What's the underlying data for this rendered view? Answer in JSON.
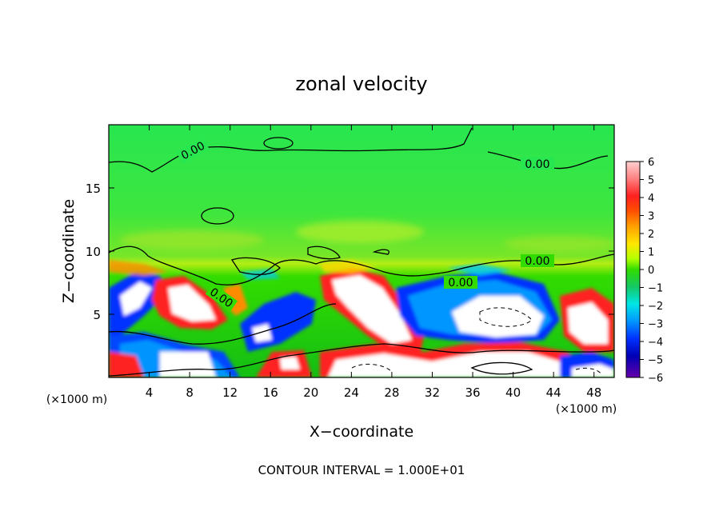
{
  "chart_data": {
    "type": "heatmap",
    "title": "zonal velocity",
    "xlabel": "X−coordinate",
    "ylabel": "Z−coordinate",
    "x_unit_left": "(×1000 m)",
    "x_unit_right": "(×1000 m)",
    "xlim": [
      0,
      50
    ],
    "ylim": [
      0,
      20
    ],
    "x_ticks": [
      4,
      8,
      12,
      16,
      20,
      24,
      28,
      32,
      36,
      40,
      44,
      48
    ],
    "y_ticks": [
      5,
      10,
      15
    ],
    "colorbar_ticks": [
      6,
      5,
      4,
      3,
      2,
      1,
      0,
      -1,
      -2,
      -3,
      -4,
      -5,
      -6
    ],
    "colorbar_labels": [
      "6",
      "5",
      "4",
      "3",
      "2",
      "1",
      "0",
      "−1",
      "−2",
      "−3",
      "−4",
      "−5",
      "−6"
    ],
    "colorbar_range": [
      -6,
      6
    ],
    "contour_labels": [
      "0.00",
      "0.00",
      "0.00",
      "0.00",
      "0.00"
    ],
    "footer": "CONTOUR INTERVAL = 1.000E+01",
    "grid": false,
    "colorbar_colors": [
      "#ffffff",
      "#ffb0b0",
      "#ff5050",
      "#ff0000",
      "#ff8c00",
      "#ffd700",
      "#ffff00",
      "#b4ff00",
      "#32dc00",
      "#14be14",
      "#28d2a0",
      "#00e6ff",
      "#0096ff",
      "#0046ff",
      "#0000c8",
      "#000096",
      "#6400aa"
    ]
  }
}
